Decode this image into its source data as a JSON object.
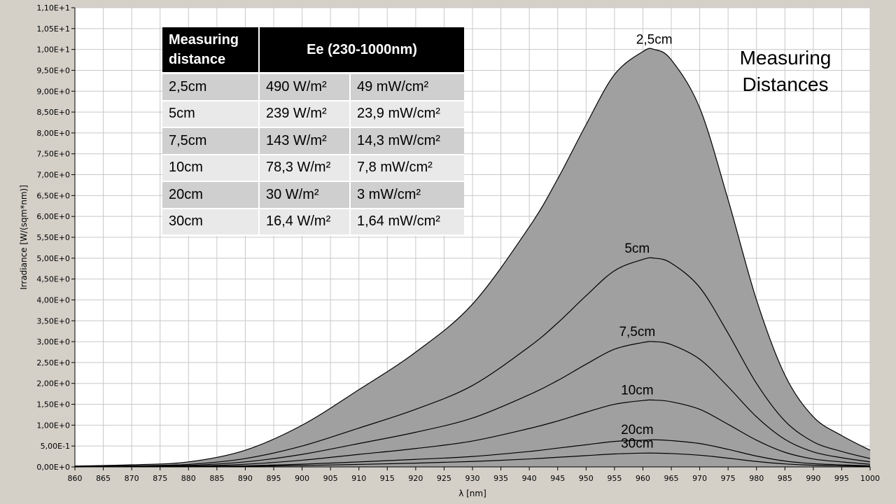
{
  "chart_data": {
    "type": "area",
    "title": "",
    "xlabel": "λ [nm]",
    "ylabel": "Irradiance [W/(sqm*nm)]",
    "xlim": [
      860,
      1000
    ],
    "ylim": [
      0,
      11
    ],
    "grid": true,
    "x_ticks": [
      "860",
      "865",
      "870",
      "875",
      "880",
      "885",
      "890",
      "895",
      "900",
      "905",
      "910",
      "915",
      "920",
      "925",
      "930",
      "935",
      "940",
      "945",
      "950",
      "955",
      "960",
      "965",
      "970",
      "975",
      "980",
      "985",
      "990",
      "995",
      "1000"
    ],
    "y_ticks": [
      "0,00E+0",
      "5,00E-1",
      "1,00E+0",
      "1,50E+0",
      "2,00E+0",
      "2,50E+0",
      "3,00E+0",
      "3,50E+0",
      "4,00E+0",
      "4,50E+0",
      "5,00E+0",
      "5,50E+0",
      "6,00E+0",
      "6,50E+0",
      "7,00E+0",
      "7,50E+0",
      "8,00E+0",
      "8,50E+0",
      "9,00E+0",
      "9,50E+0",
      "1,00E+1",
      "1,05E+1",
      "1,10E+1"
    ],
    "x": [
      860,
      870,
      880,
      890,
      900,
      910,
      920,
      930,
      940,
      945,
      950,
      955,
      960,
      962,
      965,
      970,
      975,
      980,
      985,
      990,
      995,
      1000
    ],
    "series": [
      {
        "name": "2,5cm",
        "values": [
          0.02,
          0.05,
          0.12,
          0.4,
          1.0,
          1.85,
          2.75,
          3.9,
          5.75,
          6.9,
          8.2,
          9.4,
          9.95,
          10.0,
          9.75,
          8.6,
          6.4,
          4.0,
          2.2,
          1.2,
          0.75,
          0.4
        ],
        "label_x": 962
      },
      {
        "name": "5cm",
        "values": [
          0.01,
          0.025,
          0.06,
          0.2,
          0.5,
          0.93,
          1.38,
          1.95,
          2.88,
          3.45,
          4.1,
          4.7,
          4.97,
          5.0,
          4.88,
          4.3,
          3.2,
          2.0,
          1.1,
          0.6,
          0.37,
          0.2
        ],
        "label_x": 959
      },
      {
        "name": "7,5cm",
        "values": [
          0.006,
          0.015,
          0.036,
          0.12,
          0.3,
          0.56,
          0.83,
          1.17,
          1.73,
          2.07,
          2.46,
          2.82,
          2.98,
          3.0,
          2.93,
          2.58,
          1.92,
          1.2,
          0.66,
          0.36,
          0.22,
          0.12
        ],
        "label_x": 959
      },
      {
        "name": "10cm",
        "values": [
          0.003,
          0.008,
          0.019,
          0.064,
          0.16,
          0.3,
          0.44,
          0.62,
          0.92,
          1.1,
          1.31,
          1.5,
          1.59,
          1.6,
          1.56,
          1.38,
          1.02,
          0.64,
          0.35,
          0.19,
          0.12,
          0.064
        ],
        "label_x": 959
      },
      {
        "name": "20cm",
        "values": [
          0.0013,
          0.0033,
          0.008,
          0.026,
          0.065,
          0.12,
          0.18,
          0.25,
          0.37,
          0.45,
          0.53,
          0.61,
          0.64,
          0.65,
          0.63,
          0.56,
          0.42,
          0.26,
          0.14,
          0.078,
          0.049,
          0.026
        ],
        "label_x": 959
      },
      {
        "name": "30cm",
        "values": [
          0.0006,
          0.0016,
          0.004,
          0.013,
          0.033,
          0.06,
          0.09,
          0.13,
          0.19,
          0.23,
          0.27,
          0.31,
          0.33,
          0.33,
          0.32,
          0.28,
          0.21,
          0.13,
          0.072,
          0.04,
          0.025,
          0.013
        ],
        "label_x": 959
      }
    ],
    "annotation": "Measuring Distances",
    "fill_color": "#a0a0a0",
    "line_color": "#000000",
    "plot_bg": "#ffffff",
    "grid_color": "#c8c8c8"
  },
  "table": {
    "headers": [
      "Measuring distance",
      "Ee  (230-1000nm)"
    ],
    "rows": [
      [
        "2,5cm",
        "490 W/m²",
        "49 mW/cm²"
      ],
      [
        "5cm",
        "239 W/m²",
        "23,9 mW/cm²"
      ],
      [
        "7,5cm",
        "143 W/m²",
        "14,3 mW/cm²"
      ],
      [
        "10cm",
        "78,3 W/m²",
        "7,8 mW/cm²"
      ],
      [
        "20cm",
        "30 W/m²",
        "3 mW/cm²"
      ],
      [
        "30cm",
        "16,4 W/m²",
        "1,64 mW/cm²"
      ]
    ]
  }
}
